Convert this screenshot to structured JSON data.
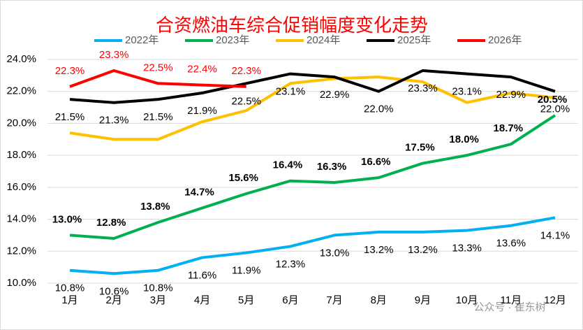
{
  "chart_data": {
    "type": "line",
    "title": "合资燃油车综合促销幅度变化走势",
    "categories": [
      "1月",
      "2月",
      "3月",
      "4月",
      "5月",
      "6月",
      "7月",
      "8月",
      "9月",
      "10月",
      "11月",
      "12月"
    ],
    "ylim": [
      10,
      24
    ],
    "yticks": [
      {
        "value": 10,
        "label": "10.0%"
      },
      {
        "value": 12,
        "label": "12.0%"
      },
      {
        "value": 14,
        "label": "14.0%"
      },
      {
        "value": 16,
        "label": "16.0%"
      },
      {
        "value": 18,
        "label": "18.0%"
      },
      {
        "value": 20,
        "label": "20.0%"
      },
      {
        "value": 22,
        "label": "22.0%"
      },
      {
        "value": 24,
        "label": "24.0%"
      }
    ],
    "grid": true,
    "legend": "top",
    "watermark": "公众号 · 崔东树",
    "series": [
      {
        "name": "2022年",
        "color": "#00b0f0",
        "label_position": "below",
        "label_bold": false,
        "values": [
          10.8,
          10.6,
          10.8,
          11.6,
          11.9,
          12.3,
          13.0,
          13.2,
          13.2,
          13.3,
          13.6,
          14.1
        ],
        "value_labels": [
          "10.8%",
          "10.6%",
          "10.8%",
          "11.6%",
          "11.9%",
          "12.3%",
          "13.0%",
          "13.2%",
          "13.2%",
          "13.3%",
          "13.6%",
          "14.1%"
        ]
      },
      {
        "name": "2023年",
        "color": "#00b050",
        "label_position": "above",
        "label_bold": true,
        "values": [
          13.0,
          12.8,
          13.8,
          14.7,
          15.6,
          16.4,
          16.3,
          16.6,
          17.5,
          18.0,
          18.7,
          20.5
        ],
        "value_labels": [
          "13.0%",
          "12.8%",
          "13.8%",
          "14.7%",
          "15.6%",
          "16.4%",
          "16.3%",
          "16.6%",
          "17.5%",
          "18.0%",
          "18.7%",
          "20.5%"
        ]
      },
      {
        "name": "2024年",
        "color": "#ffc000",
        "values": [
          19.4,
          19.0,
          19.0,
          20.1,
          20.8,
          22.5,
          22.8,
          22.9,
          22.6,
          21.3,
          21.9,
          21.6
        ]
      },
      {
        "name": "2025年",
        "color": "#000000",
        "label_position": "below",
        "label_bold": false,
        "values": [
          21.5,
          21.3,
          21.5,
          21.9,
          22.5,
          23.1,
          22.9,
          22.0,
          23.3,
          23.1,
          22.9,
          22.0
        ],
        "value_labels": [
          "21.5%",
          "21.3%",
          "21.5%",
          "21.9%",
          "22.5%",
          "23.1%",
          "22.9%",
          "22.0%",
          "23.3%",
          "23.1%",
          "22.9%",
          "22.0%"
        ]
      },
      {
        "name": "2026年",
        "color": "#ff0000",
        "label_position": "above",
        "label_bold": false,
        "values": [
          22.3,
          23.3,
          22.5,
          22.4,
          22.3,
          null,
          null,
          null,
          null,
          null,
          null,
          null
        ],
        "value_labels": [
          "22.3%",
          "23.3%",
          "22.5%",
          "22.4%",
          "22.3%",
          null,
          null,
          null,
          null,
          null,
          null,
          null
        ]
      }
    ]
  }
}
